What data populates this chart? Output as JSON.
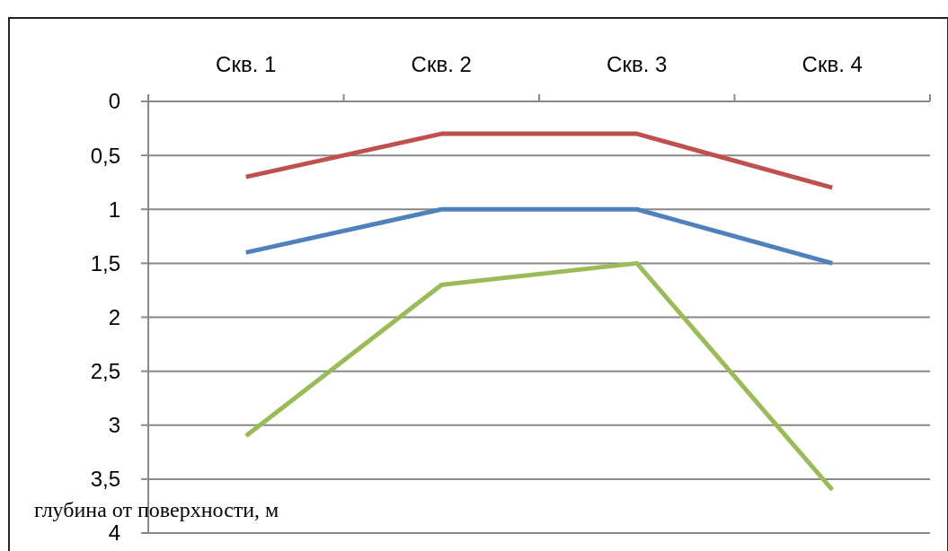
{
  "chart_data": {
    "type": "line",
    "categories": [
      "Скв. 1",
      "Скв. 2",
      "Скв. 3",
      "Скв. 4"
    ],
    "series": [
      {
        "color": "#c0504d",
        "values": [
          0.7,
          0.3,
          0.3,
          0.8
        ]
      },
      {
        "color": "#4f81bd",
        "values": [
          1.4,
          1.0,
          1.0,
          1.5
        ]
      },
      {
        "color": "#9bbb59",
        "values": [
          3.1,
          1.7,
          1.5,
          3.6
        ]
      }
    ],
    "ylim": [
      4,
      0
    ],
    "yticks": [
      0,
      {
        "value": 0.5,
        "label": "0,5"
      },
      1,
      {
        "value": 1.5,
        "label": "1,5"
      },
      2,
      {
        "value": 2.5,
        "label": "2,5"
      },
      3,
      {
        "value": 3.5,
        "label": "3,5"
      },
      4
    ],
    "ylabel": "глубина от поверхности, м",
    "grid": "y",
    "marker": "none",
    "line_style": "solid"
  }
}
